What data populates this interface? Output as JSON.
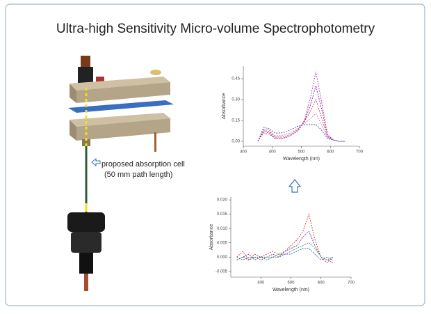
{
  "title": "Ultra-high Sensitivity Micro-volume Spectrophotometry",
  "annotation": {
    "line1": "proposed absorption cell",
    "line2": "(50 mm path length)"
  },
  "chart_data": [
    {
      "type": "line",
      "xlabel": "Wavelength (nm)",
      "ylabel": "Absorbance",
      "x": [
        350,
        370,
        390,
        410,
        430,
        450,
        470,
        490,
        510,
        530,
        550,
        570,
        590,
        610,
        630,
        650
      ],
      "xlim": [
        300,
        700
      ],
      "xticks": [
        300,
        400,
        500,
        600,
        700
      ],
      "ylim": [
        -0.035,
        0.54
      ],
      "yticks": [
        {
          "value": 0,
          "label": "0.00"
        },
        0.15,
        {
          "value": 0.3,
          "label": "0.30"
        },
        0.45
      ],
      "series": [
        {
          "color": "#c0389c",
          "values": [
            0,
            0.06,
            0.05,
            0.02,
            0.02,
            0.03,
            0.05,
            0.08,
            0.15,
            0.3,
            0.5,
            0.28,
            0.05,
            0.01,
            0,
            0
          ]
        },
        {
          "color": "#7030a0",
          "values": [
            0,
            0.07,
            0.06,
            0.02,
            0.02,
            0.03,
            0.05,
            0.08,
            0.14,
            0.25,
            0.4,
            0.23,
            0.04,
            0.01,
            0,
            0
          ]
        },
        {
          "color": "#d03030",
          "values": [
            0,
            0.08,
            0.07,
            0.03,
            0.03,
            0.04,
            0.06,
            0.09,
            0.14,
            0.21,
            0.3,
            0.17,
            0.03,
            0.01,
            0,
            0
          ]
        },
        {
          "color": "#e070c0",
          "values": [
            0,
            0.09,
            0.08,
            0.04,
            0.04,
            0.05,
            0.07,
            0.1,
            0.13,
            0.16,
            0.2,
            0.12,
            0.03,
            0.01,
            0,
            0
          ]
        },
        {
          "color": "#4050c0",
          "values": [
            0,
            0.1,
            0.09,
            0.06,
            0.06,
            0.07,
            0.09,
            0.11,
            0.12,
            0.12,
            0.12,
            0.08,
            0.02,
            0.01,
            0,
            0
          ]
        }
      ]
    },
    {
      "type": "line",
      "xlabel": "Wavelength (nm)",
      "ylabel": "Absorbance",
      "x": [
        320,
        340,
        360,
        380,
        400,
        420,
        440,
        460,
        480,
        500,
        520,
        540,
        560,
        580,
        600,
        620,
        640
      ],
      "xlim": [
        300,
        700
      ],
      "xticks": [
        400,
        500,
        600,
        700
      ],
      "ylim": [
        -0.007,
        0.021
      ],
      "yticks": [
        -0.005,
        {
          "value": 0,
          "label": "0.000"
        },
        0.005,
        {
          "value": 0.01,
          "label": "0.010"
        },
        0.015,
        {
          "value": 0.02,
          "label": "0.020"
        }
      ],
      "series": [
        {
          "color": "#d03030",
          "values": [
            0.0,
            0.002,
            -0.001,
            0.001,
            0.0,
            0.001,
            0.002,
            0.001,
            0.002,
            0.004,
            0.006,
            0.009,
            0.015,
            0.006,
            0.0,
            -0.002,
            0.0
          ]
        },
        {
          "color": "#7030a0",
          "values": [
            -0.001,
            0.0,
            0.001,
            -0.001,
            0.0,
            0.0,
            0.001,
            0.0,
            0.002,
            0.003,
            0.004,
            0.007,
            0.009,
            0.004,
            0.0,
            -0.001,
            -0.002
          ]
        },
        {
          "color": "#30a030",
          "values": [
            0.0,
            -0.001,
            0.0,
            0.0,
            -0.001,
            0.0,
            0.0,
            0.001,
            0.001,
            0.002,
            0.003,
            0.004,
            0.005,
            0.003,
            0.0,
            -0.001,
            0.0
          ]
        },
        {
          "color": "#4050c0",
          "values": [
            -0.001,
            0.0,
            -0.001,
            0.0,
            0.0,
            -0.001,
            0.0,
            0.0,
            0.001,
            0.001,
            0.002,
            0.003,
            0.003,
            0.001,
            -0.001,
            0.0,
            -0.001
          ]
        }
      ]
    }
  ]
}
